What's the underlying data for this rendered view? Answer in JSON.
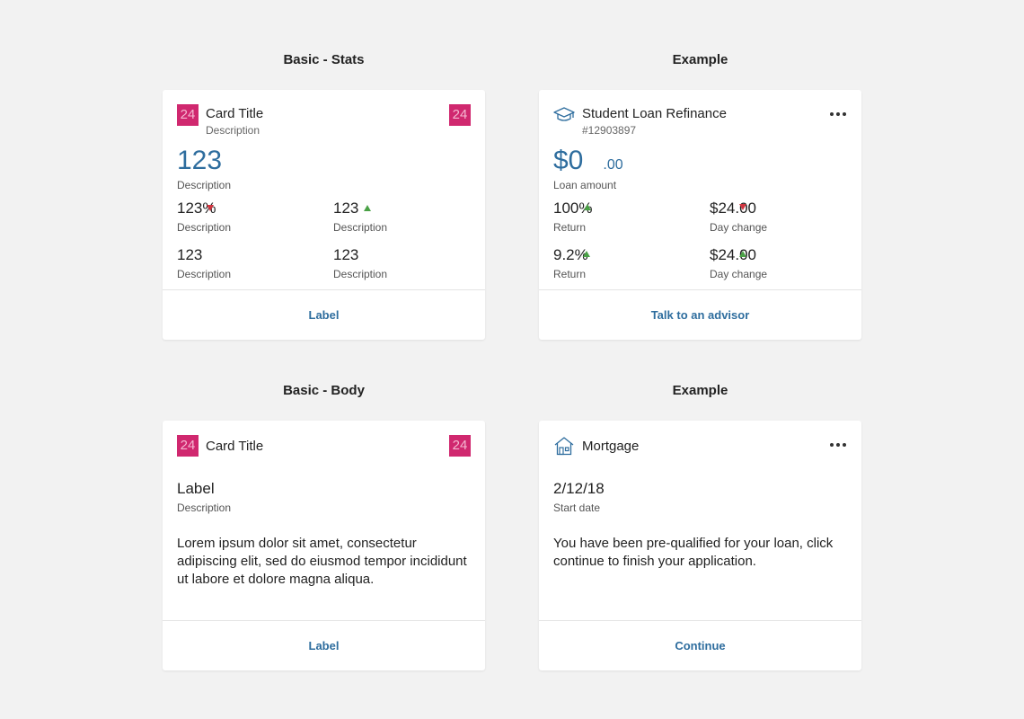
{
  "sections": {
    "basic_stats": "Basic - Stats",
    "example_1": "Example",
    "basic_body": "Basic - Body",
    "example_2": "Example"
  },
  "card_stats": {
    "badge_left": "24",
    "badge_right": "24",
    "title": "Card Title",
    "subtitle": "Description",
    "big_value": "123",
    "big_label": "Description",
    "stats": [
      {
        "value": "123%",
        "desc": "Description",
        "trend": "down"
      },
      {
        "value": "123",
        "desc": "Description",
        "trend": "up"
      },
      {
        "value": "123",
        "desc": "Description"
      },
      {
        "value": "123",
        "desc": "Description"
      }
    ],
    "footer_label": "Label"
  },
  "card_loan": {
    "icon": "graduation-cap-icon",
    "title": "Student Loan Refinance",
    "subtitle": "#12903897",
    "big_value": "$0",
    "big_cents": ".00",
    "big_label": "Loan amount",
    "stats": [
      {
        "value": "100%",
        "desc": "Return",
        "trend": "up"
      },
      {
        "value": "$24.00",
        "desc": "Day change",
        "trend": "down"
      },
      {
        "value": "9.2%",
        "desc": "Return",
        "trend": "up"
      },
      {
        "value": "$24.00",
        "desc": "Day change",
        "trend": "up"
      }
    ],
    "footer_label": "Talk to an advisor"
  },
  "card_body": {
    "badge_left": "24",
    "badge_right": "24",
    "title": "Card Title",
    "label": "Label",
    "desc": "Description",
    "text": "Lorem ipsum dolor sit amet, consectetur adipiscing elit, sed do eiusmod tempor incididunt ut labore et dolore magna aliqua.",
    "footer_label": "Label"
  },
  "card_mortgage": {
    "icon": "house-icon",
    "title": "Mortgage",
    "label": "2/12/18",
    "desc": "Start date",
    "text": "You have been pre-qualified for your loan, click continue to finish your application.",
    "footer_label": "Continue"
  },
  "colors": {
    "background": "#f2f2f2",
    "accent_blue": "#2e6d9e",
    "badge_pink": "#d0286f",
    "trend_up": "#4aa146",
    "trend_down": "#d03540"
  }
}
